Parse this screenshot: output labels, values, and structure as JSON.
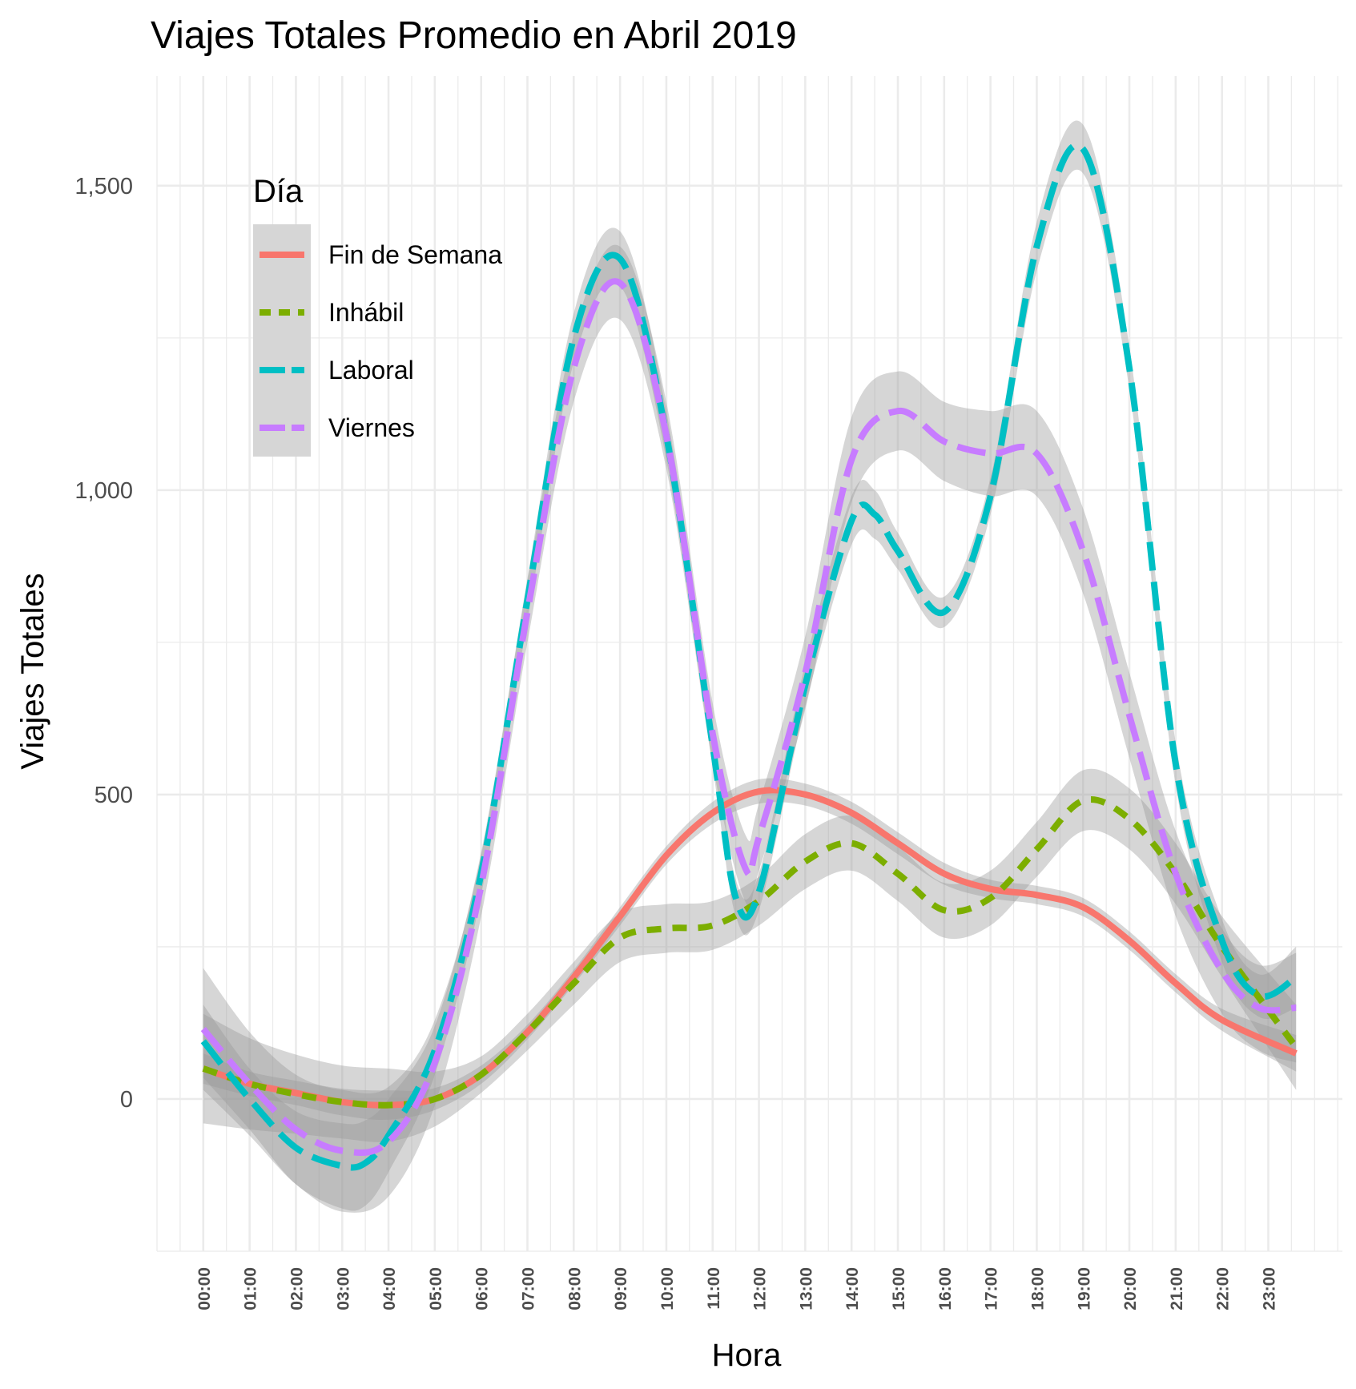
{
  "chart_data": {
    "type": "line",
    "title": "Viajes Totales Promedio en Abril 2019",
    "xlabel": "Hora",
    "ylabel": "Viajes Totales",
    "x_categories": [
      "00:00",
      "01:00",
      "02:00",
      "03:00",
      "04:00",
      "05:00",
      "06:00",
      "07:00",
      "08:00",
      "09:00",
      "10:00",
      "11:00",
      "12:00",
      "13:00",
      "14:00",
      "15:00",
      "16:00",
      "17:00",
      "18:00",
      "19:00",
      "20:00",
      "21:00",
      "22:00",
      "23:00"
    ],
    "xlim": [
      -1,
      24.6
    ],
    "ylim": [
      -250,
      1680
    ],
    "y_ticks": [
      0,
      500,
      1000,
      1500
    ],
    "y_tick_labels": [
      "0",
      "500",
      "1,000",
      "1,500"
    ],
    "grid": true,
    "smoothed_with_confidence_band": true,
    "legend": {
      "title": "Día",
      "position": "top-left"
    },
    "series": [
      {
        "name": "Fin de Semana",
        "color": "#F8766D",
        "dash": "solid",
        "x": [
          0,
          1,
          2,
          3,
          4,
          5,
          6,
          7,
          8,
          9,
          10,
          11,
          12,
          13,
          14,
          15,
          16,
          17,
          18,
          19,
          20,
          21,
          22,
          23.6
        ],
        "y": [
          50,
          25,
          10,
          -5,
          -10,
          0,
          40,
          110,
          200,
          300,
          400,
          470,
          505,
          500,
          470,
          420,
          370,
          345,
          335,
          315,
          260,
          190,
          130,
          75
        ],
        "band": [
          25,
          20,
          20,
          22,
          24,
          18,
          15,
          12,
          12,
          15,
          15,
          18,
          20,
          18,
          18,
          18,
          18,
          15,
          15,
          15,
          15,
          15,
          18,
          30
        ]
      },
      {
        "name": "Inhábil",
        "color": "#7CAE00",
        "dash": "short",
        "x": [
          0,
          1,
          2,
          3,
          4,
          5,
          6,
          7,
          8,
          9,
          10,
          11,
          12,
          13,
          14,
          15,
          16,
          17,
          18,
          19,
          20,
          21,
          22,
          23.6
        ],
        "y": [
          50,
          25,
          8,
          -5,
          -10,
          0,
          40,
          110,
          190,
          265,
          280,
          285,
          325,
          390,
          420,
          370,
          310,
          330,
          410,
          490,
          460,
          370,
          250,
          85
        ],
        "band": [
          90,
          75,
          65,
          60,
          60,
          45,
          30,
          30,
          35,
          40,
          40,
          40,
          40,
          45,
          45,
          45,
          45,
          45,
          45,
          50,
          50,
          50,
          50,
          70
        ]
      },
      {
        "name": "Laboral",
        "color": "#00BFC4",
        "dash": "long",
        "x": [
          0,
          1,
          2,
          3,
          3.5,
          4,
          5,
          6,
          7,
          8,
          9,
          10,
          11,
          11.5,
          12,
          13,
          14,
          14.5,
          15,
          16,
          17,
          18,
          19,
          20,
          21,
          22,
          22.8,
          23.6
        ],
        "y": [
          95,
          0,
          -80,
          -110,
          -105,
          -60,
          80,
          370,
          820,
          1250,
          1380,
          1090,
          580,
          330,
          340,
          680,
          950,
          960,
          900,
          800,
          990,
          1400,
          1560,
          1200,
          550,
          260,
          170,
          200
        ],
        "band": [
          60,
          50,
          60,
          70,
          70,
          60,
          40,
          35,
          35,
          40,
          45,
          40,
          35,
          30,
          30,
          35,
          40,
          40,
          30,
          25,
          30,
          40,
          40,
          35,
          35,
          35,
          35,
          50
        ]
      },
      {
        "name": "Viernes",
        "color": "#C77CFF",
        "dash": "long",
        "x": [
          0,
          1,
          2,
          3,
          4,
          5,
          6,
          7,
          8,
          9,
          10,
          11,
          11.7,
          12,
          13,
          14,
          15,
          16,
          17,
          18,
          19,
          20,
          21,
          22,
          22.8,
          23.6
        ],
        "y": [
          115,
          25,
          -50,
          -85,
          -70,
          60,
          350,
          800,
          1200,
          1340,
          1090,
          600,
          380,
          430,
          700,
          1050,
          1130,
          1080,
          1060,
          1060,
          900,
          630,
          370,
          210,
          150,
          150
        ],
        "band": [
          100,
          85,
          90,
          100,
          90,
          70,
          50,
          50,
          55,
          60,
          55,
          50,
          55,
          55,
          60,
          70,
          65,
          65,
          70,
          70,
          70,
          70,
          70,
          70,
          70,
          90
        ]
      }
    ]
  }
}
